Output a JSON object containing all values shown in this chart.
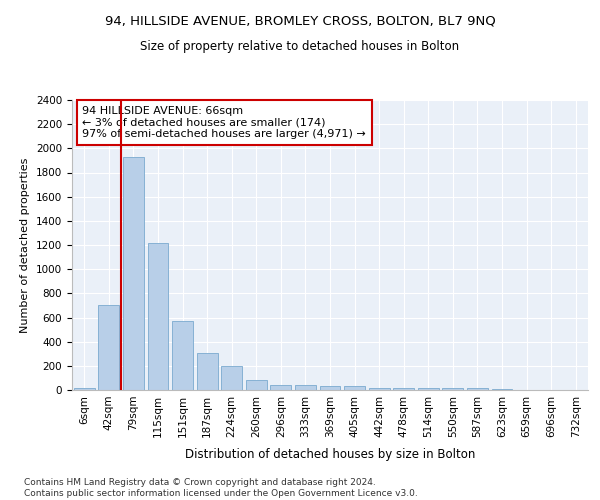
{
  "title1": "94, HILLSIDE AVENUE, BROMLEY CROSS, BOLTON, BL7 9NQ",
  "title2": "Size of property relative to detached houses in Bolton",
  "xlabel": "Distribution of detached houses by size in Bolton",
  "ylabel": "Number of detached properties",
  "categories": [
    "6sqm",
    "42sqm",
    "79sqm",
    "115sqm",
    "151sqm",
    "187sqm",
    "224sqm",
    "260sqm",
    "296sqm",
    "333sqm",
    "369sqm",
    "405sqm",
    "442sqm",
    "478sqm",
    "514sqm",
    "550sqm",
    "587sqm",
    "623sqm",
    "659sqm",
    "696sqm",
    "732sqm"
  ],
  "values": [
    18,
    700,
    1930,
    1220,
    570,
    305,
    200,
    85,
    45,
    40,
    35,
    30,
    20,
    20,
    15,
    20,
    20,
    5,
    3,
    2,
    2
  ],
  "bar_color": "#b8cfe8",
  "bar_edge_color": "#7aaacf",
  "vline_color": "#cc0000",
  "vline_x": 1.5,
  "annotation_text": "94 HILLSIDE AVENUE: 66sqm\n← 3% of detached houses are smaller (174)\n97% of semi-detached houses are larger (4,971) →",
  "annotation_box_color": "#ffffff",
  "annotation_box_edge": "#cc0000",
  "ylim": [
    0,
    2400
  ],
  "yticks": [
    0,
    200,
    400,
    600,
    800,
    1000,
    1200,
    1400,
    1600,
    1800,
    2000,
    2200,
    2400
  ],
  "bg_color": "#eaf0f8",
  "footer": "Contains HM Land Registry data © Crown copyright and database right 2024.\nContains public sector information licensed under the Open Government Licence v3.0.",
  "title1_fontsize": 9.5,
  "title2_fontsize": 8.5,
  "xlabel_fontsize": 8.5,
  "ylabel_fontsize": 8,
  "tick_fontsize": 7.5,
  "annotation_fontsize": 8,
  "footer_fontsize": 6.5
}
